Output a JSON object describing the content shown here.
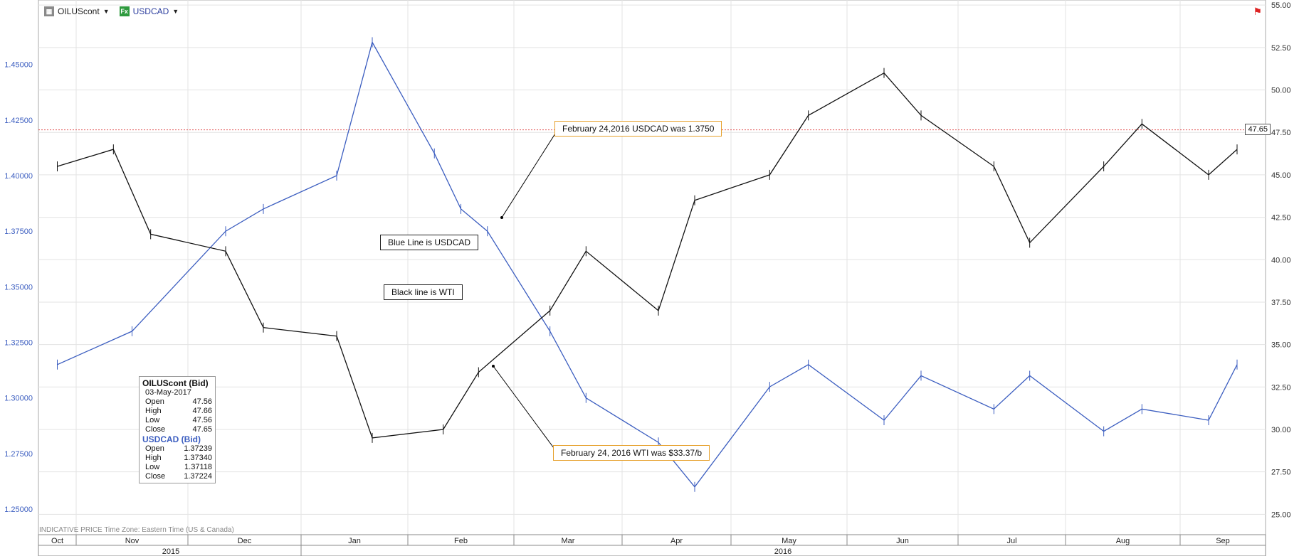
{
  "legend": {
    "series1_label": "OILUScont",
    "series2_icon": "Fx",
    "series2_label": "USDCAD"
  },
  "annotations": {
    "usdcad_note": "February 24,2016 USDCAD was 1.3750",
    "wti_note": "February 24, 2016 WTI  was $33.37/b",
    "blue_line": "Blue Line is USDCAD",
    "black_line": "Black line is WTI"
  },
  "databox": {
    "oil_title": "OILUScont (Bid)",
    "date": "03-May-2017",
    "oil_rows": [
      {
        "label": "Open",
        "value": "47.56"
      },
      {
        "label": "High",
        "value": "47.66"
      },
      {
        "label": "Low",
        "value": "47.56"
      },
      {
        "label": "Close",
        "value": "47.65"
      }
    ],
    "usd_title": "USDCAD (Bid)",
    "usd_rows": [
      {
        "label": "Open",
        "value": "1.37239"
      },
      {
        "label": "High",
        "value": "1.37340"
      },
      {
        "label": "Low",
        "value": "1.37118"
      },
      {
        "label": "Close",
        "value": "1.37224"
      }
    ]
  },
  "price_tag": "47.65",
  "footer": {
    "indicative": "INDICATIVE PRICE   Time Zone: Eastern Time (US & Canada)"
  },
  "chart_data": {
    "type": "line",
    "left_axis": {
      "ticks": [
        "1.25000",
        "1.27500",
        "1.30000",
        "1.32500",
        "1.35000",
        "1.37500",
        "1.40000",
        "1.42500",
        "1.45000"
      ],
      "values": [
        1.25,
        1.275,
        1.3,
        1.325,
        1.35,
        1.375,
        1.4,
        1.425,
        1.45
      ],
      "range": [
        1.2385,
        1.479
      ]
    },
    "right_axis": {
      "ticks": [
        "25.00",
        "27.50",
        "30.00",
        "32.50",
        "35.00",
        "37.50",
        "40.00",
        "42.50",
        "45.00",
        "47.50",
        "50.00",
        "52.50",
        "55.00"
      ],
      "values": [
        25,
        27.5,
        30,
        32.5,
        35,
        37.5,
        40,
        42.5,
        45,
        47.5,
        50,
        52.5,
        55
      ],
      "range": [
        23.8,
        55.3
      ]
    },
    "months": [
      "Oct",
      "Nov",
      "Dec",
      "Jan",
      "Feb",
      "Mar",
      "Apr",
      "May",
      "Jun",
      "Jul",
      "Aug",
      "Sep"
    ],
    "years": [
      "2015",
      "2016"
    ],
    "reference_level": 47.65,
    "series": [
      {
        "name": "USDCAD",
        "axis": "left",
        "color": "#3c5ec0",
        "points": [
          [
            "Oct",
            1.315
          ],
          [
            "Nov",
            1.33
          ],
          [
            "Dec",
            1.375
          ],
          [
            "Dec",
            1.385
          ],
          [
            "Jan",
            1.4
          ],
          [
            "Jan",
            1.46
          ],
          [
            "Feb",
            1.41
          ],
          [
            "Feb",
            1.385
          ],
          [
            "Feb",
            1.375
          ],
          [
            "Mar",
            1.33
          ],
          [
            "Mar",
            1.3
          ],
          [
            "Apr",
            1.28
          ],
          [
            "Apr",
            1.26
          ],
          [
            "May",
            1.305
          ],
          [
            "May",
            1.315
          ],
          [
            "Jun",
            1.29
          ],
          [
            "Jun",
            1.31
          ],
          [
            "Jul",
            1.295
          ],
          [
            "Jul",
            1.31
          ],
          [
            "Aug",
            1.285
          ],
          [
            "Aug",
            1.295
          ],
          [
            "Sep",
            1.29
          ],
          [
            "Sep",
            1.315
          ]
        ]
      },
      {
        "name": "WTI",
        "axis": "right",
        "color": "#111111",
        "points": [
          [
            "Oct",
            45.5
          ],
          [
            "Nov",
            46.5
          ],
          [
            "Nov",
            41.5
          ],
          [
            "Dec",
            40.5
          ],
          [
            "Dec",
            36.0
          ],
          [
            "Jan",
            35.5
          ],
          [
            "Jan",
            29.5
          ],
          [
            "Feb",
            30.0
          ],
          [
            "Feb",
            33.37
          ],
          [
            "Mar",
            37.0
          ],
          [
            "Mar",
            40.5
          ],
          [
            "Apr",
            37.0
          ],
          [
            "Apr",
            43.5
          ],
          [
            "May",
            45.0
          ],
          [
            "May",
            48.5
          ],
          [
            "Jun",
            51.0
          ],
          [
            "Jun",
            48.5
          ],
          [
            "Jul",
            45.5
          ],
          [
            "Jul",
            41.0
          ],
          [
            "Aug",
            45.5
          ],
          [
            "Aug",
            48.0
          ],
          [
            "Sep",
            45.0
          ],
          [
            "Sep",
            46.5
          ]
        ]
      }
    ]
  }
}
